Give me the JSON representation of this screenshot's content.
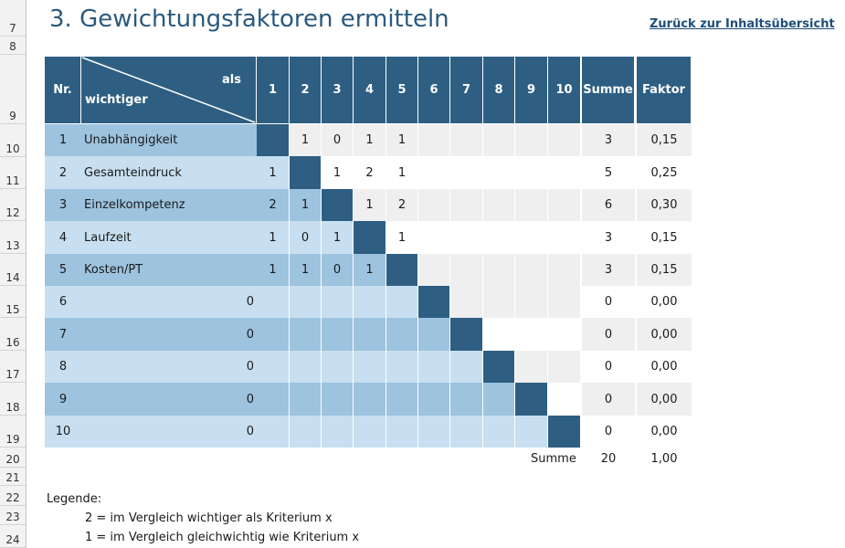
{
  "row_numbers": [
    "7",
    "8",
    "9",
    "10",
    "11",
    "12",
    "13",
    "14",
    "15",
    "16",
    "17",
    "18",
    "19",
    "20",
    "21",
    "22",
    "23",
    "24"
  ],
  "title": "3. Gewichtungsfaktoren ermitteln",
  "back_link": "Zurück zur Inhaltsübersicht",
  "header": {
    "nr": "Nr.",
    "als": "als",
    "wichtiger": "wichtiger",
    "columns": [
      "1",
      "2",
      "3",
      "4",
      "5",
      "6",
      "7",
      "8",
      "9",
      "10"
    ],
    "summe": "Summe",
    "faktor": "Faktor"
  },
  "rows": [
    {
      "nr": "1",
      "label": "Unabhängigkeit",
      "values": [
        "",
        "1",
        "0",
        "1",
        "1",
        "",
        "",
        "",
        "",
        ""
      ],
      "summe": "3",
      "faktor": "0,15"
    },
    {
      "nr": "2",
      "label": "Gesamteindruck",
      "values": [
        "1",
        "",
        "1",
        "2",
        "1",
        "",
        "",
        "",
        "",
        ""
      ],
      "summe": "5",
      "faktor": "0,25"
    },
    {
      "nr": "3",
      "label": "Einzelkompetenz",
      "values": [
        "2",
        "1",
        "",
        "1",
        "2",
        "",
        "",
        "",
        "",
        ""
      ],
      "summe": "6",
      "faktor": "0,30"
    },
    {
      "nr": "4",
      "label": "Laufzeit",
      "values": [
        "1",
        "0",
        "1",
        "",
        "1",
        "",
        "",
        "",
        "",
        ""
      ],
      "summe": "3",
      "faktor": "0,15"
    },
    {
      "nr": "5",
      "label": "Kosten/PT",
      "values": [
        "1",
        "1",
        "0",
        "1",
        "",
        "",
        "",
        "",
        "",
        ""
      ],
      "summe": "3",
      "faktor": "0,15"
    },
    {
      "nr": "6",
      "label": "0",
      "values": [
        "",
        "",
        "",
        "",
        "",
        "",
        "",
        "",
        "",
        ""
      ],
      "summe": "0",
      "faktor": "0,00"
    },
    {
      "nr": "7",
      "label": "0",
      "values": [
        "",
        "",
        "",
        "",
        "",
        "",
        "",
        "",
        "",
        ""
      ],
      "summe": "0",
      "faktor": "0,00"
    },
    {
      "nr": "8",
      "label": "0",
      "values": [
        "",
        "",
        "",
        "",
        "",
        "",
        "",
        "",
        "",
        ""
      ],
      "summe": "0",
      "faktor": "0,00"
    },
    {
      "nr": "9",
      "label": "0",
      "values": [
        "",
        "",
        "",
        "",
        "",
        "",
        "",
        "",
        "",
        ""
      ],
      "summe": "0",
      "faktor": "0,00"
    },
    {
      "nr": "10",
      "label": "0",
      "values": [
        "",
        "",
        "",
        "",
        "",
        "",
        "",
        "",
        "",
        ""
      ],
      "summe": "0",
      "faktor": "0,00"
    }
  ],
  "totals": {
    "label": "Summe",
    "summe": "20",
    "faktor": "1,00"
  },
  "legend": {
    "title": "Legende:",
    "line1": "2 = im Vergleich wichtiger als Kriterium x",
    "line2": "1 = im Vergleich gleichwichtig wie Kriterium x"
  },
  "colors": {
    "header_bg": "#2e5f82",
    "band_dark": "#9dc3df",
    "band_light": "#c7dff0",
    "upper_gray": "#efefef",
    "white": "#ffffff"
  }
}
